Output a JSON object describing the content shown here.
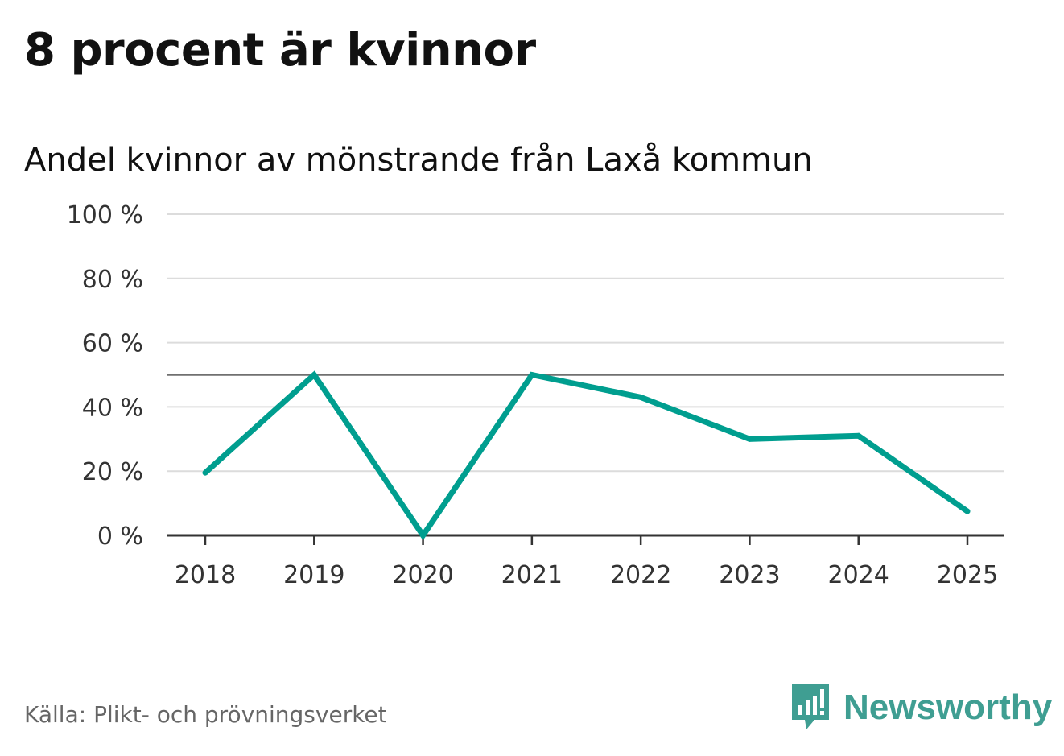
{
  "header": {
    "title": "8 procent är kvinnor",
    "subtitle": "Andel kvinnor av mönstrande från Laxå kommun"
  },
  "footer": {
    "source": "Källa: Plikt- och prövningsverket",
    "brand": "Newsworthy",
    "brand_icon": "chart-bubble-icon"
  },
  "colors": {
    "line": "#009e8f",
    "reference": "#707070",
    "grid": "#dcdcdc",
    "axis": "#333333",
    "brand": "#3f9e92"
  },
  "chart_data": {
    "type": "line",
    "categories": [
      "2018",
      "2019",
      "2020",
      "2021",
      "2022",
      "2023",
      "2024",
      "2025"
    ],
    "series": [
      {
        "values": [
          19.5,
          50,
          0,
          50,
          43,
          30,
          31,
          7.5
        ]
      }
    ],
    "y_ticks": [
      "0 %",
      "20 %",
      "40 %",
      "60 %",
      "80 %",
      "100 %"
    ],
    "ylim": [
      0,
      100
    ],
    "reference_line": 50,
    "grid": true,
    "legend": "none"
  }
}
